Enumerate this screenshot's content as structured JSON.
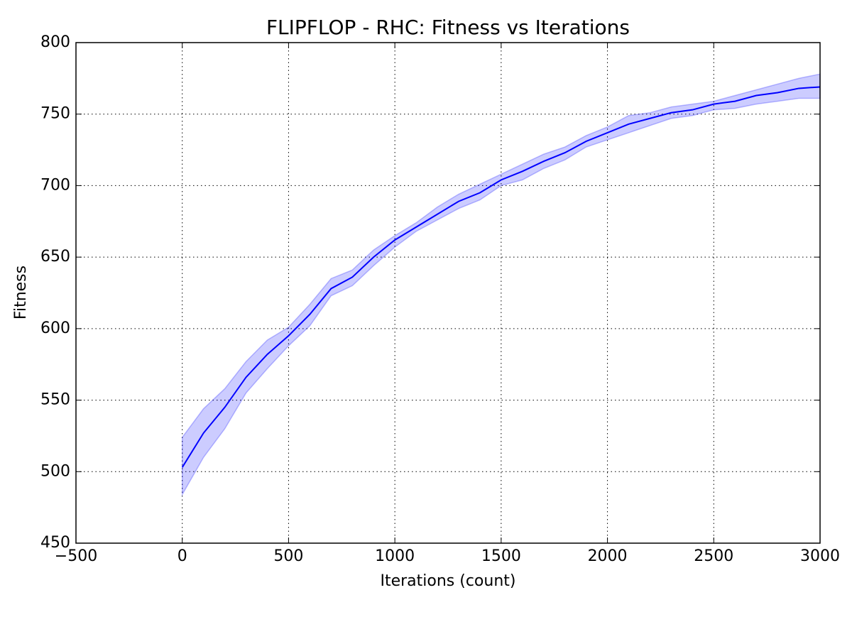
{
  "chart_data": {
    "type": "line",
    "title": "FLIPFLOP - RHC: Fitness vs Iterations",
    "x_label": "Iterations (count)",
    "y_label": "Fitness",
    "x": [
      0,
      100,
      200,
      300,
      400,
      500,
      600,
      700,
      800,
      900,
      1000,
      1100,
      1200,
      1300,
      1400,
      1500,
      1600,
      1700,
      1800,
      1900,
      2000,
      2100,
      2200,
      2300,
      2400,
      2500,
      2600,
      2700,
      2800,
      2900,
      3000
    ],
    "values": [
      503,
      527,
      545,
      566,
      582,
      595,
      610,
      628,
      636,
      650,
      662,
      671,
      680,
      689,
      695,
      704,
      710,
      717,
      723,
      731,
      737,
      743,
      747,
      751,
      753,
      757,
      759,
      763,
      765,
      768,
      769
    ],
    "upper": [
      524,
      544,
      558,
      577,
      592,
      601,
      617,
      635,
      641,
      655,
      665,
      674,
      685,
      694,
      701,
      708,
      715,
      722,
      727,
      735,
      741,
      749,
      751,
      755,
      757,
      759,
      763,
      767,
      771,
      775,
      778
    ],
    "lower": [
      484,
      510,
      530,
      555,
      572,
      588,
      602,
      623,
      630,
      644,
      657,
      668,
      676,
      684,
      690,
      700,
      704,
      712,
      718,
      727,
      732,
      737,
      742,
      747,
      749,
      753,
      754,
      757,
      759,
      761,
      761
    ],
    "color": "#0000ff",
    "band_color": "#0000ff",
    "xlim": [
      -500,
      3000
    ],
    "ylim": [
      450,
      800
    ],
    "xticks": [
      {
        "value": -500,
        "label": "−500"
      },
      0,
      500,
      1000,
      1500,
      2000,
      2500,
      3000
    ],
    "yticks": [
      450,
      500,
      550,
      600,
      650,
      700,
      750,
      800
    ],
    "grid": true
  }
}
